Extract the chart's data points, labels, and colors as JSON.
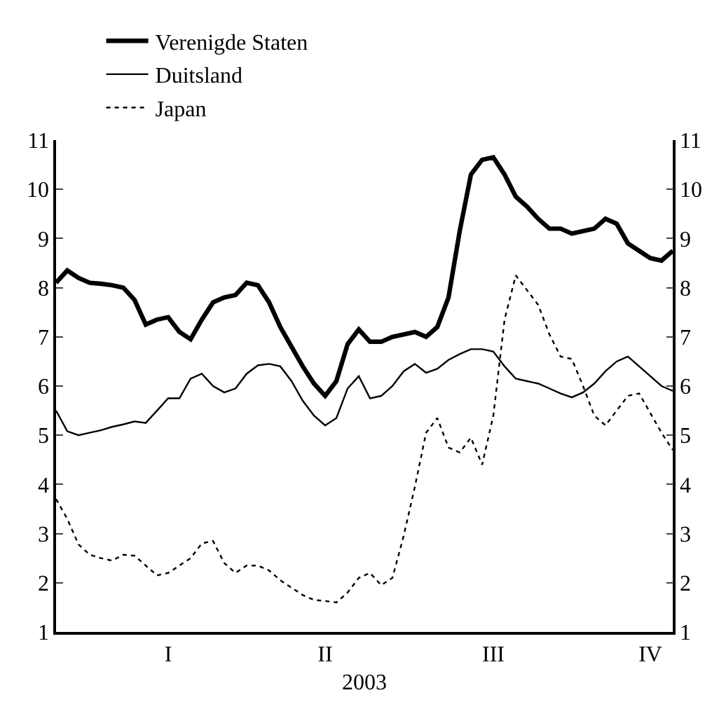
{
  "chart_data": {
    "type": "line",
    "xlabel": "2003",
    "legend": "top left",
    "categories": [
      null,
      null,
      null,
      null,
      null,
      null,
      null,
      null,
      null,
      null,
      "I",
      null,
      null,
      null,
      null,
      null,
      null,
      null,
      null,
      null,
      null,
      null,
      null,
      null,
      "II",
      null,
      null,
      null,
      null,
      null,
      null,
      null,
      null,
      null,
      null,
      null,
      null,
      null,
      null,
      "III",
      null,
      null,
      null,
      null,
      null,
      null,
      null,
      null,
      null,
      null,
      null,
      null,
      null,
      "IV",
      null,
      null
    ],
    "ylim": [
      1,
      11
    ],
    "yticks": [
      1,
      2,
      3,
      4,
      5,
      6,
      7,
      8,
      9,
      10,
      11
    ],
    "y2lim": [
      1,
      11
    ],
    "y2ticks": [
      1,
      2,
      3,
      4,
      5,
      6,
      7,
      8,
      9,
      10,
      11
    ],
    "series": [
      {
        "name": "Verenigde Staten",
        "color": "#000000",
        "line_style": "solid",
        "values": [
          8.1,
          8.35,
          8.2,
          8.1,
          8.08,
          8.05,
          8.0,
          7.75,
          7.25,
          7.35,
          7.4,
          7.1,
          6.95,
          7.35,
          7.7,
          7.8,
          7.85,
          8.1,
          8.05,
          7.7,
          7.2,
          6.8,
          6.4,
          6.05,
          5.8,
          6.1,
          6.85,
          7.15,
          6.9,
          6.9,
          7.0,
          7.05,
          7.1,
          7.0,
          7.2,
          7.8,
          9.15,
          10.3,
          10.6,
          10.65,
          10.3,
          9.85,
          9.65,
          9.4,
          9.2,
          9.2,
          9.1,
          9.15,
          9.2,
          9.4,
          9.3,
          8.9,
          8.75,
          8.6,
          8.55,
          8.75
        ]
      },
      {
        "name": "Duitsland",
        "color": "#000000",
        "line_style": "solid",
        "values": [
          5.5,
          5.08,
          5.0,
          5.05,
          5.1,
          5.17,
          5.22,
          5.28,
          5.25,
          5.5,
          5.75,
          5.75,
          6.15,
          6.25,
          6.0,
          5.87,
          5.95,
          6.25,
          6.42,
          6.45,
          6.4,
          6.1,
          5.7,
          5.4,
          5.2,
          5.35,
          5.95,
          6.2,
          5.75,
          5.8,
          6.0,
          6.3,
          6.45,
          6.27,
          6.35,
          6.53,
          6.65,
          6.75,
          6.75,
          6.7,
          6.4,
          6.15,
          6.1,
          6.05,
          5.95,
          5.85,
          5.77,
          5.87,
          6.05,
          6.3,
          6.5,
          6.6,
          6.4,
          6.2,
          6.0,
          5.9
        ]
      },
      {
        "name": "Japan",
        "color": "#000000",
        "line_style": "dotted",
        "values": [
          3.7,
          3.3,
          2.78,
          2.57,
          2.5,
          2.45,
          2.57,
          2.55,
          2.35,
          2.15,
          2.2,
          2.35,
          2.5,
          2.8,
          2.85,
          2.4,
          2.2,
          2.35,
          2.35,
          2.25,
          2.05,
          1.9,
          1.75,
          1.65,
          1.63,
          1.6,
          1.8,
          2.1,
          2.2,
          1.95,
          2.1,
          2.95,
          3.95,
          5.05,
          5.35,
          4.75,
          4.65,
          4.95,
          4.4,
          5.4,
          7.35,
          8.25,
          7.95,
          7.65,
          7.05,
          6.6,
          6.55,
          6.0,
          5.4,
          5.2,
          5.5,
          5.8,
          5.85,
          5.45,
          5.05,
          4.7
        ]
      }
    ]
  }
}
